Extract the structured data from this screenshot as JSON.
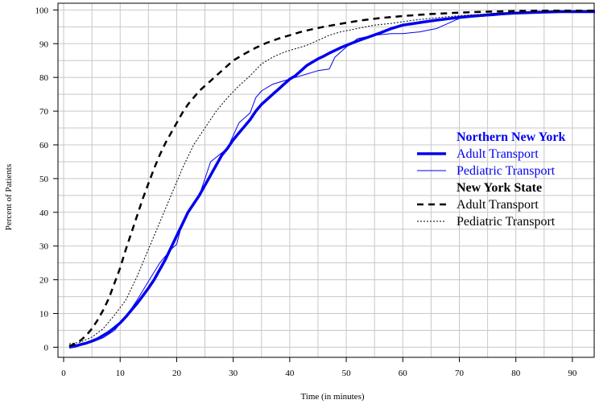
{
  "chart_data": {
    "type": "line",
    "xlabel": "Time (in minutes)",
    "ylabel": "Percent of Patients",
    "xlim": [
      -1,
      94
    ],
    "ylim": [
      -3,
      102
    ],
    "xticks": [
      0,
      10,
      20,
      30,
      40,
      50,
      60,
      70,
      80,
      90
    ],
    "yticks": [
      0,
      10,
      20,
      30,
      40,
      50,
      60,
      70,
      80,
      90,
      100
    ],
    "xgrid": [
      0,
      5,
      10,
      15,
      20,
      25,
      30,
      35,
      40,
      45,
      50,
      55,
      60,
      65,
      70,
      75,
      80,
      85,
      90
    ],
    "yminor": [
      5,
      15,
      25,
      35,
      45,
      55,
      65,
      75,
      85,
      95
    ],
    "grid": true,
    "legend_position": "right",
    "legend": [
      {
        "header": "Northern New York",
        "color": "#0000ee",
        "items": [
          {
            "series": 0,
            "label": "Adult Transport"
          },
          {
            "series": 1,
            "label": "Pediatric Transport"
          }
        ]
      },
      {
        "header": "New York State",
        "color": "#000000",
        "items": [
          {
            "series": 2,
            "label": "Adult Transport"
          },
          {
            "series": 3,
            "label": "Pediatric Transport"
          }
        ]
      }
    ],
    "series": [
      {
        "group": "Northern New York",
        "name": "Adult Transport",
        "color": "#0000ee",
        "width": 3.5,
        "dash": "",
        "x": [
          1,
          2,
          3,
          4,
          5,
          6,
          7,
          8,
          9,
          10,
          11,
          12,
          13,
          14,
          15,
          16,
          17,
          18,
          19,
          20,
          21,
          22,
          23,
          24,
          25,
          26,
          27,
          28,
          29,
          30,
          31,
          32,
          33,
          34,
          35,
          36,
          37,
          38,
          39,
          40,
          41,
          42,
          43,
          44,
          45,
          46,
          47,
          48,
          49,
          50,
          52,
          54,
          56,
          58,
          60,
          62,
          64,
          66,
          68,
          70,
          72,
          74,
          76,
          78,
          80,
          82,
          84,
          86,
          88,
          90,
          92,
          94
        ],
        "y": [
          0,
          0.3,
          0.8,
          1.2,
          1.8,
          2.5,
          3.5,
          4.5,
          5.8,
          7.2,
          9,
          11,
          13,
          15.2,
          17.5,
          20,
          23,
          26,
          29.5,
          33,
          36.5,
          40,
          42.5,
          45,
          48,
          51,
          54,
          57,
          59,
          61.5,
          63.5,
          65.5,
          67.5,
          70,
          72,
          73.5,
          75,
          76.5,
          78,
          79.5,
          80.5,
          82,
          83.5,
          84.5,
          85.5,
          86.3,
          87.2,
          88,
          88.8,
          89.5,
          90.8,
          92,
          93.2,
          94.5,
          95.5,
          96,
          96.5,
          97,
          97.4,
          97.8,
          98.1,
          98.4,
          98.7,
          98.9,
          99.1,
          99.2,
          99.3,
          99.4,
          99.5,
          99.5,
          99.5,
          99.5
        ]
      },
      {
        "group": "Northern New York",
        "name": "Pediatric Transport",
        "color": "#0000ee",
        "width": 1,
        "dash": "",
        "x": [
          1,
          3,
          5,
          7,
          9,
          11,
          13,
          15,
          17,
          19,
          20,
          21,
          23,
          24,
          26,
          29,
          31,
          33,
          34,
          35,
          37,
          39,
          41,
          43,
          45,
          47,
          48,
          50,
          52,
          55,
          58,
          60,
          63,
          66,
          68,
          70,
          73,
          76,
          79,
          82,
          86,
          90,
          94
        ],
        "y": [
          0.5,
          0.8,
          1.5,
          2.8,
          5,
          9,
          14,
          19.5,
          25,
          29,
          30.5,
          37,
          43,
          45,
          55,
          59,
          66.5,
          69.5,
          74,
          76,
          78,
          79,
          80,
          81,
          82,
          82.5,
          86,
          89,
          91.5,
          92.5,
          93,
          93,
          93.5,
          94.5,
          96,
          97.5,
          98,
          98.3,
          98.8,
          99.2,
          99.5,
          99.5,
          99.5
        ]
      },
      {
        "group": "New York State",
        "name": "Adult Transport",
        "color": "#000000",
        "width": 2.5,
        "dash": "8,6",
        "x": [
          1,
          2,
          3,
          4,
          5,
          6,
          7,
          8,
          9,
          10,
          11,
          12,
          13,
          14,
          15,
          16,
          17,
          18,
          19,
          20,
          21,
          22,
          23,
          24,
          25,
          26,
          27,
          28,
          29,
          30,
          32,
          34,
          36,
          38,
          40,
          42,
          44,
          46,
          48,
          50,
          53,
          56,
          60,
          65,
          70,
          75,
          80,
          85,
          90,
          94
        ],
        "y": [
          0.3,
          1,
          2,
          3.5,
          5.5,
          8,
          11,
          14.5,
          19,
          23.5,
          29,
          34,
          39,
          44,
          48.5,
          53,
          57,
          60.5,
          63.5,
          66.5,
          69.5,
          72,
          74,
          76,
          77.5,
          79,
          80.5,
          82,
          83.5,
          85,
          87,
          88.8,
          90.3,
          91.5,
          92.5,
          93.5,
          94.3,
          95,
          95.6,
          96.2,
          97,
          97.6,
          98.2,
          98.8,
          99.2,
          99.5,
          99.7,
          99.8,
          99.8,
          99.8
        ]
      },
      {
        "group": "New York State",
        "name": "Pediatric Transport",
        "color": "#000000",
        "width": 1,
        "dash": "2,2",
        "x": [
          1,
          3,
          5,
          7,
          9,
          11,
          13,
          15,
          17,
          19,
          21,
          23,
          25,
          27,
          29,
          31,
          33,
          35,
          37,
          39,
          41,
          43,
          45,
          47,
          49,
          52,
          55,
          58,
          62,
          66,
          70,
          75,
          80,
          85,
          90,
          94
        ],
        "y": [
          1,
          1.5,
          3,
          5.5,
          9.5,
          14,
          21,
          29,
          37,
          45,
          53,
          60,
          65,
          70,
          74,
          77.5,
          80.5,
          84,
          86,
          87.5,
          88.5,
          89.5,
          91,
          92.5,
          93.5,
          94.5,
          95.5,
          96,
          97,
          97.7,
          98.3,
          98.8,
          99.2,
          99.5,
          99.7,
          99.8
        ]
      }
    ]
  }
}
